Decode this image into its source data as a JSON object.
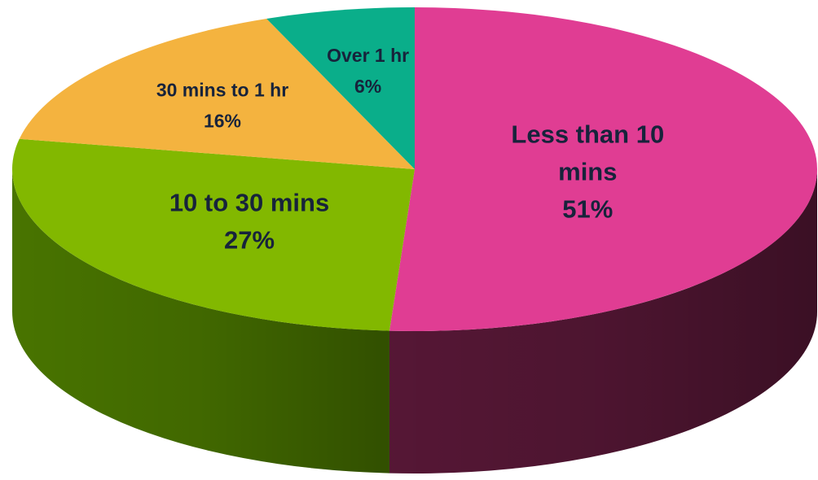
{
  "chart_data": {
    "type": "pie",
    "style": "3d",
    "title": "",
    "legend": "none",
    "slices": [
      {
        "label": "Less than 10 mins",
        "value": 51,
        "value_label": "51%",
        "label_lines": [
          "Less than 10",
          "mins"
        ],
        "color": "#e03d93",
        "side_color": "#5a1838"
      },
      {
        "label": "10 to 30 mins",
        "value": 27,
        "value_label": "27%",
        "label_lines": [
          "10 to 30 mins"
        ],
        "color": "#82b800",
        "side_color": "#4c7a00"
      },
      {
        "label": "30 mins to 1 hr",
        "value": 16,
        "value_label": "16%",
        "label_lines": [
          "30 mins to 1 hr"
        ],
        "color": "#f4b33f",
        "side_color": "#a8741d"
      },
      {
        "label": "Over 1 hr",
        "value": 6,
        "value_label": "6%",
        "label_lines": [
          "Over 1 hr"
        ],
        "color": "#0aae8a",
        "side_color": "#06705a"
      }
    ]
  }
}
